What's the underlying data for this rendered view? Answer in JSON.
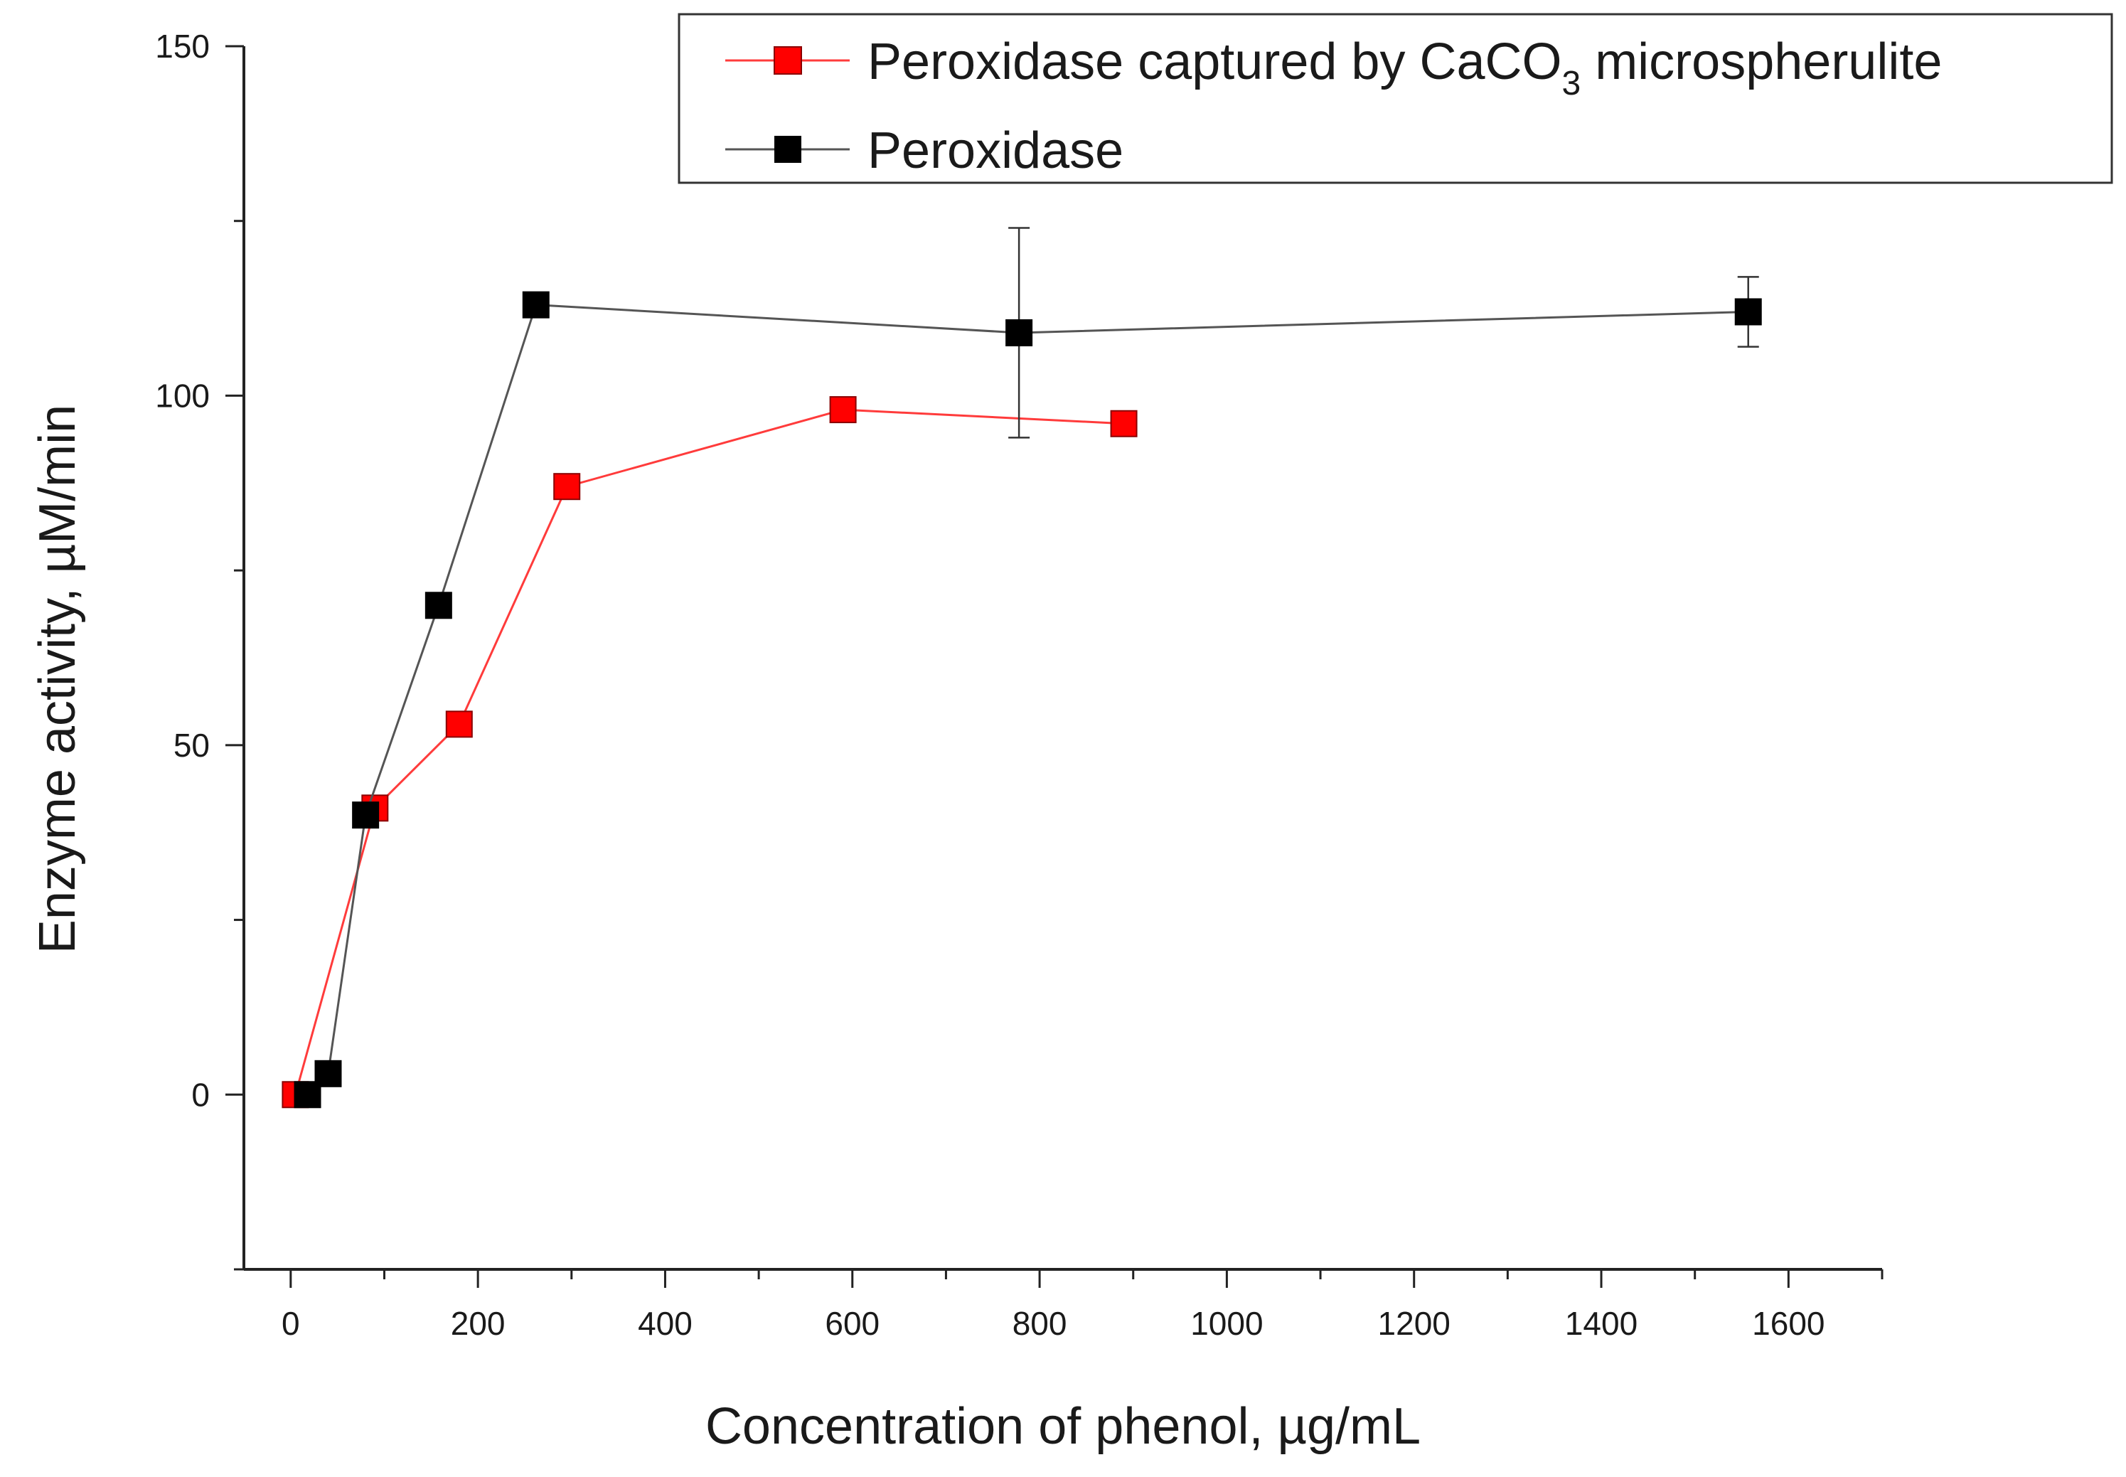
{
  "chart_data": {
    "type": "line",
    "title": "",
    "xlabel": "Concentration of phenol, µg/mL",
    "ylabel": "Enzyme activity, µM/min",
    "xlim": [
      -50,
      1700
    ],
    "ylim": [
      -25,
      150
    ],
    "x_major_ticks": [
      0,
      200,
      400,
      600,
      800,
      1000,
      1200,
      1400,
      1600
    ],
    "x_minor_ticks": [
      100,
      300,
      500,
      700,
      900,
      1100,
      1300,
      1500,
      1700
    ],
    "y_major_ticks": [
      0,
      50,
      100,
      150
    ],
    "y_minor_ticks": [
      25,
      75,
      125,
      -25
    ],
    "x_tick_labels": [
      "0",
      "200",
      "400",
      "600",
      "800",
      "1000",
      "1200",
      "1400",
      "1600"
    ],
    "y_tick_labels": [
      "0",
      "50",
      "100",
      "150"
    ],
    "legend_position": "top-right",
    "series": [
      {
        "name": "Peroxidase captured by CaCO",
        "name_subscript": "3",
        "name_suffix": " microspherulite",
        "color": "#ff0000",
        "line_color": "#ff3b3b",
        "x": [
          5,
          90,
          180,
          295,
          590,
          890
        ],
        "y": [
          0,
          41,
          53,
          87,
          98,
          96
        ],
        "err": [
          0,
          1.5,
          1.5,
          1.5,
          1.5,
          1.5
        ]
      },
      {
        "name": "Peroxidase",
        "color": "#000000",
        "line_color": "#555555",
        "x": [
          18,
          40,
          80,
          158,
          262,
          778,
          1557
        ],
        "y": [
          0,
          3,
          40,
          70,
          113,
          109,
          112
        ],
        "err": [
          0,
          0,
          0,
          0,
          0,
          15,
          5
        ]
      }
    ]
  }
}
